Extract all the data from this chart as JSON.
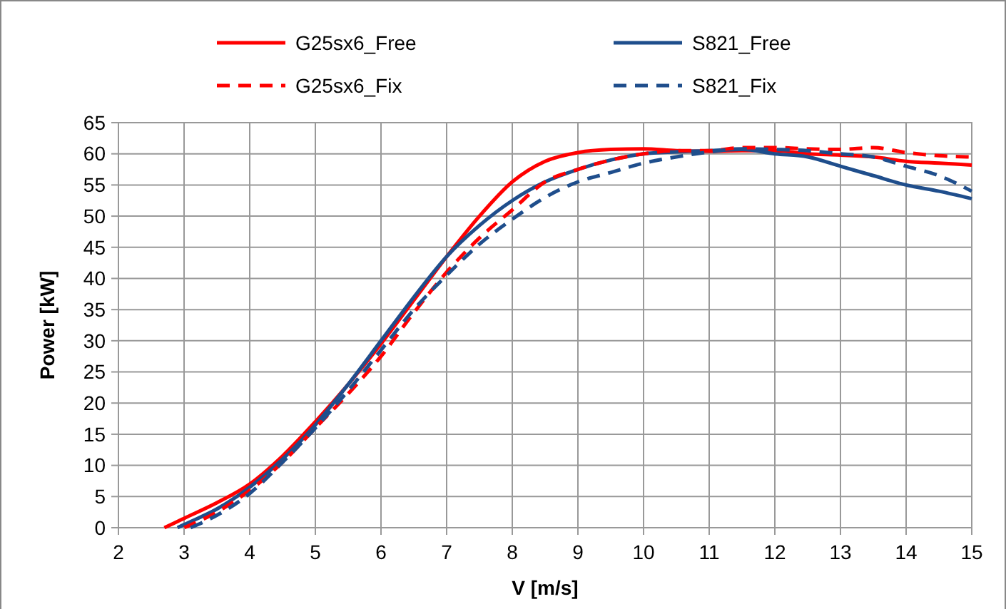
{
  "chart_data": {
    "type": "line",
    "xlabel": "V [m/s]",
    "ylabel": "Power [kW]",
    "xlim": [
      2,
      15
    ],
    "xticks": [
      2,
      3,
      4,
      5,
      6,
      7,
      8,
      9,
      10,
      11,
      12,
      13,
      14,
      15
    ],
    "ylim": [
      0,
      65
    ],
    "yticks": [
      0,
      5,
      10,
      15,
      20,
      25,
      30,
      35,
      40,
      45,
      50,
      55,
      60,
      65
    ],
    "grid": true,
    "legend": "top",
    "marker": "none",
    "series": [
      {
        "name": "G25sx6_Free",
        "color": "#ff0000",
        "line_style": "solid",
        "x": [
          2.7,
          3,
          3.5,
          4,
          4.5,
          5,
          5.5,
          6,
          6.5,
          7,
          7.5,
          8,
          8.5,
          9,
          9.5,
          10,
          10.5,
          11,
          11.5,
          12,
          12.5,
          13,
          13.5,
          14,
          14.5,
          15
        ],
        "values": [
          0,
          1.5,
          4,
          7,
          11.5,
          17,
          23,
          29.5,
          36.5,
          43.5,
          50,
          55.5,
          58.8,
          60.2,
          60.7,
          60.8,
          60.5,
          60.4,
          60.5,
          60.5,
          60,
          59.8,
          59.5,
          58.8,
          58.5,
          58.2
        ]
      },
      {
        "name": "S821_Free",
        "color": "#1f4e8c",
        "line_style": "solid",
        "x": [
          2.9,
          3,
          3.5,
          4,
          4.5,
          5,
          5.5,
          6,
          6.5,
          7,
          7.5,
          8,
          8.5,
          9,
          9.5,
          10,
          10.5,
          11,
          11.5,
          12,
          12.5,
          13,
          13.5,
          14,
          14.5,
          15
        ],
        "values": [
          0,
          0.5,
          3,
          6.5,
          11,
          16.5,
          23,
          30,
          37,
          43.5,
          48.5,
          52.5,
          55.5,
          57.5,
          59,
          60,
          60.3,
          60.5,
          60.7,
          60,
          59.5,
          58,
          56.5,
          55,
          54,
          52.8
        ]
      },
      {
        "name": "G25sx6_Fix",
        "color": "#ff0000",
        "line_style": "dashed",
        "x": [
          3,
          3.5,
          4,
          4.5,
          5,
          5.5,
          6,
          6.5,
          7,
          7.5,
          8,
          8.5,
          9,
          9.5,
          10,
          10.5,
          11,
          11.5,
          12,
          12.5,
          13,
          13.5,
          14,
          14.5,
          15
        ],
        "values": [
          0,
          2.5,
          6,
          10.5,
          16,
          21.5,
          27.5,
          34.5,
          41,
          46.5,
          51,
          55.5,
          57.5,
          59,
          60,
          60.5,
          60.5,
          61,
          61,
          60.8,
          60.7,
          61,
          60.2,
          59.7,
          59.5
        ]
      },
      {
        "name": "S821_Fix",
        "color": "#1f4e8c",
        "line_style": "dashed",
        "x": [
          3.1,
          3.5,
          4,
          4.5,
          5,
          5.5,
          6,
          6.5,
          7,
          7.5,
          8,
          8.5,
          9,
          9.5,
          10,
          10.5,
          11,
          11.5,
          12,
          12.5,
          13,
          13.5,
          14,
          14.5,
          15
        ],
        "values": [
          0,
          2,
          5.5,
          10.5,
          16,
          22,
          28.5,
          35,
          40.5,
          45.5,
          49.5,
          53,
          55.5,
          57,
          58.5,
          59.5,
          60.3,
          60.8,
          60.7,
          60.5,
          60,
          59.5,
          58,
          56.5,
          54
        ]
      }
    ]
  }
}
